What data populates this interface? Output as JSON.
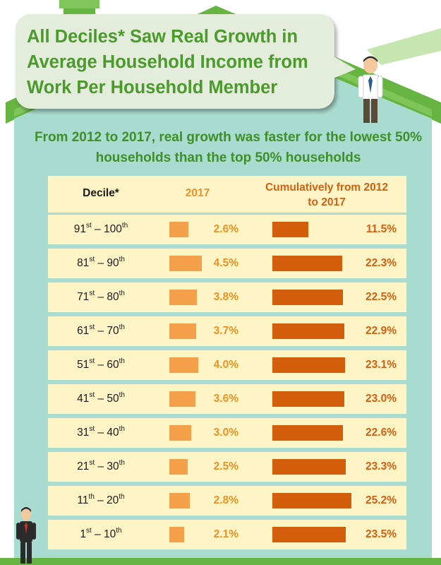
{
  "title": "All Deciles* Saw Real Growth in Average Household Income from Work Per Household Member",
  "subtitle": "From 2012 to 2017, real growth was faster for the lowest 50% households than the top 50% households",
  "colors": {
    "house_body": "#a9dcd0",
    "roof": "#66b543",
    "row_fill": "#fff4c6",
    "bar_2017": "#f5a04a",
    "bar_cumulative": "#d35f0c",
    "title_green": "#4a9a2c"
  },
  "icons": [
    "house-roof-icon",
    "businessman-icon"
  ],
  "chart_data": {
    "type": "bar",
    "title": "All Deciles* Saw Real Growth in Average Household Income from Work Per Household Member",
    "subtitle": "From 2012 to 2017, real growth was faster for the lowest 50% households than the top 50% households",
    "column_headers": {
      "decile": "Decile*",
      "year": "2017",
      "cumulative": "Cumulatively from 2012 to 2017"
    },
    "categories": [
      {
        "from": "91",
        "from_suffix": "st",
        "to": "100",
        "to_suffix": "th"
      },
      {
        "from": "81",
        "from_suffix": "st",
        "to": "90",
        "to_suffix": "th"
      },
      {
        "from": "71",
        "from_suffix": "st",
        "to": "80",
        "to_suffix": "th"
      },
      {
        "from": "61",
        "from_suffix": "st",
        "to": "70",
        "to_suffix": "th"
      },
      {
        "from": "51",
        "from_suffix": "st",
        "to": "60",
        "to_suffix": "th"
      },
      {
        "from": "41",
        "from_suffix": "st",
        "to": "50",
        "to_suffix": "th"
      },
      {
        "from": "31",
        "from_suffix": "st",
        "to": "40",
        "to_suffix": "th"
      },
      {
        "from": "21",
        "from_suffix": "st",
        "to": "30",
        "to_suffix": "th"
      },
      {
        "from": "11",
        "from_suffix": "th",
        "to": "20",
        "to_suffix": "th"
      },
      {
        "from": "1",
        "from_suffix": "st",
        "to": "10",
        "to_suffix": "th"
      }
    ],
    "series": [
      {
        "name": "2017",
        "unit": "%",
        "values": [
          2.6,
          4.5,
          3.8,
          3.7,
          4.0,
          3.6,
          3.0,
          2.5,
          2.8,
          2.1
        ]
      },
      {
        "name": "Cumulatively from 2012 to 2017",
        "unit": "%",
        "values": [
          11.5,
          22.3,
          22.5,
          22.9,
          23.1,
          23.0,
          22.6,
          23.3,
          25.2,
          23.5
        ]
      }
    ],
    "grid": false,
    "legend": "none"
  }
}
